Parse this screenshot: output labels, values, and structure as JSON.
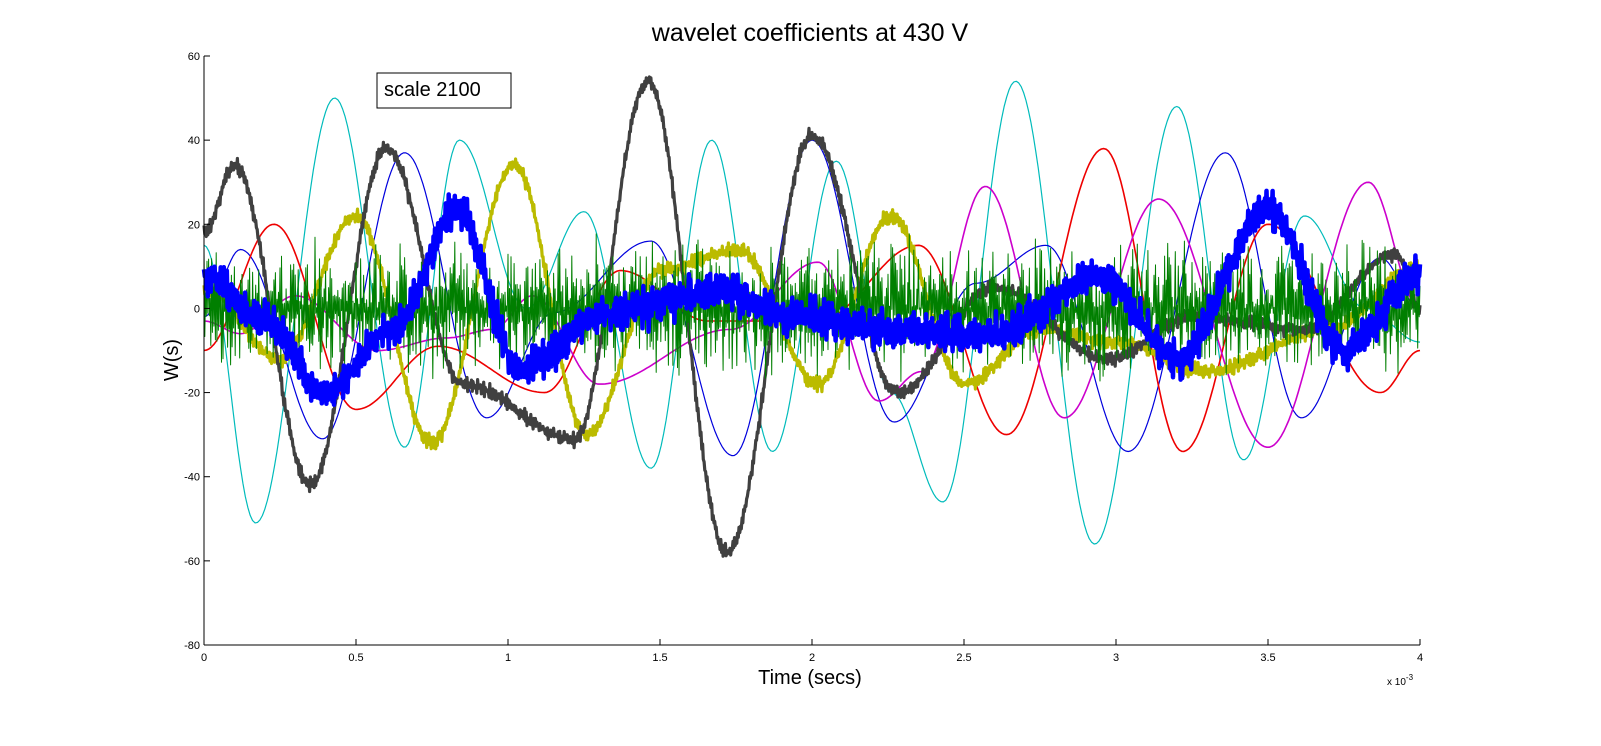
{
  "chart_data": {
    "type": "line",
    "title": "wavelet coefficients at 430 V",
    "xlabel": "Time (secs)",
    "ylabel": "W(s)",
    "x_exponent_label": "x 10",
    "x_exponent_power": "-3",
    "xlim": [
      0,
      4
    ],
    "ylim": [
      -80,
      60
    ],
    "x_ticks": [
      "0",
      "0.5",
      "1",
      "1.5",
      "2",
      "2.5",
      "3",
      "3.5",
      "4"
    ],
    "y_ticks": [
      "60",
      "40",
      "20",
      "0",
      "-20",
      "-40",
      "-60",
      "-80"
    ],
    "grid": false,
    "annotation": "scale 2100",
    "series": [
      {
        "color": "#00bbbb",
        "width": 1.2,
        "noise": 0,
        "x": [
          0,
          0.17,
          0.43,
          0.66,
          0.84,
          1.06,
          1.25,
          1.47,
          1.67,
          1.87,
          2.08,
          2.26,
          2.43,
          2.67,
          2.93,
          3.2,
          3.42,
          3.62,
          3.82,
          4
        ],
        "y": [
          15,
          -51,
          50,
          -33,
          40,
          0,
          23,
          -38,
          40,
          -34,
          35,
          -20,
          -46,
          54,
          -56,
          48,
          -36,
          22,
          0,
          -8
        ]
      },
      {
        "color": "#0000dd",
        "width": 1.2,
        "noise": 0,
        "x": [
          0,
          0.12,
          0.39,
          0.66,
          0.93,
          1.15,
          1.47,
          1.74,
          2,
          2.27,
          2.54,
          2.77,
          3.04,
          3.36,
          3.61,
          3.87,
          4
        ],
        "y": [
          -2,
          14,
          -31,
          37,
          -26,
          -1,
          16,
          -35,
          40,
          -27,
          6,
          15,
          -34,
          37,
          -26,
          12,
          0
        ],
        "extra": [
          [
            0.83,
            0
          ],
          [
            0.95,
            -30
          ]
        ]
      },
      {
        "color": "#ee0000",
        "width": 1.6,
        "noise": 0,
        "x": [
          0,
          0.23,
          0.5,
          0.77,
          1.12,
          1.37,
          1.66,
          2.02,
          2.35,
          2.64,
          2.96,
          3.22,
          3.5,
          3.87,
          4
        ],
        "y": [
          -10,
          20,
          -24,
          -9,
          -20,
          9,
          -3,
          -3,
          15,
          -30,
          38,
          -34,
          20,
          -20,
          -10
        ]
      },
      {
        "color": "#cc00cc",
        "width": 1.6,
        "noise": 0,
        "x": [
          0,
          0.12,
          0.3,
          0.57,
          0.8,
          0.95,
          1.08,
          1.3,
          1.73,
          2.02,
          2.22,
          2.36,
          2.57,
          2.83,
          3.14,
          3.5,
          3.83,
          4
        ],
        "y": [
          -3,
          -6,
          3,
          -10,
          -7,
          -5,
          3,
          -18,
          -5,
          11,
          -22,
          -15,
          29,
          -26,
          26,
          -33,
          30,
          0
        ]
      },
      {
        "color": "#bbbb00",
        "width": 3.2,
        "noise": 1.5,
        "x": [
          0,
          0.25,
          0.5,
          0.75,
          1.02,
          1.26,
          1.5,
          1.76,
          2.02,
          2.26,
          2.5,
          2.75,
          3,
          3.3,
          3.7,
          4
        ],
        "y": [
          5,
          -12,
          22,
          -32,
          34,
          -30,
          9,
          14,
          -18,
          22,
          -18,
          -5,
          -8,
          -15,
          -5,
          10
        ]
      },
      {
        "color": "#404040",
        "width": 3.2,
        "noise": 1.5,
        "x": [
          0,
          0.1,
          0.35,
          0.6,
          0.85,
          1.22,
          1.46,
          1.72,
          2,
          2.28,
          2.6,
          2.97,
          3.25,
          3.62,
          3.92,
          4
        ],
        "y": [
          18,
          34,
          -42,
          38,
          -18,
          -31,
          54,
          -58,
          41,
          -20,
          5,
          -12,
          -2,
          -5,
          13,
          0
        ]
      },
      {
        "color": "#007f00",
        "width": 1.0,
        "noise": 12,
        "x": [
          0,
          1.35,
          2.3,
          2.9,
          3.3,
          3.8,
          4
        ],
        "y": [
          0,
          0,
          0,
          0,
          0,
          0,
          0
        ]
      },
      {
        "color": "#0000ff",
        "width": 4.5,
        "noise": 4,
        "x": [
          0,
          0.2,
          0.4,
          0.62,
          0.83,
          1.04,
          1.33,
          1.7,
          1.95,
          2.28,
          2.6,
          2.95,
          3.2,
          3.5,
          3.75,
          4
        ],
        "y": [
          8,
          -3,
          -20,
          -5,
          23,
          -14,
          -1,
          4,
          -2,
          -5,
          -6,
          8,
          -12,
          23,
          -10,
          8
        ]
      }
    ]
  }
}
